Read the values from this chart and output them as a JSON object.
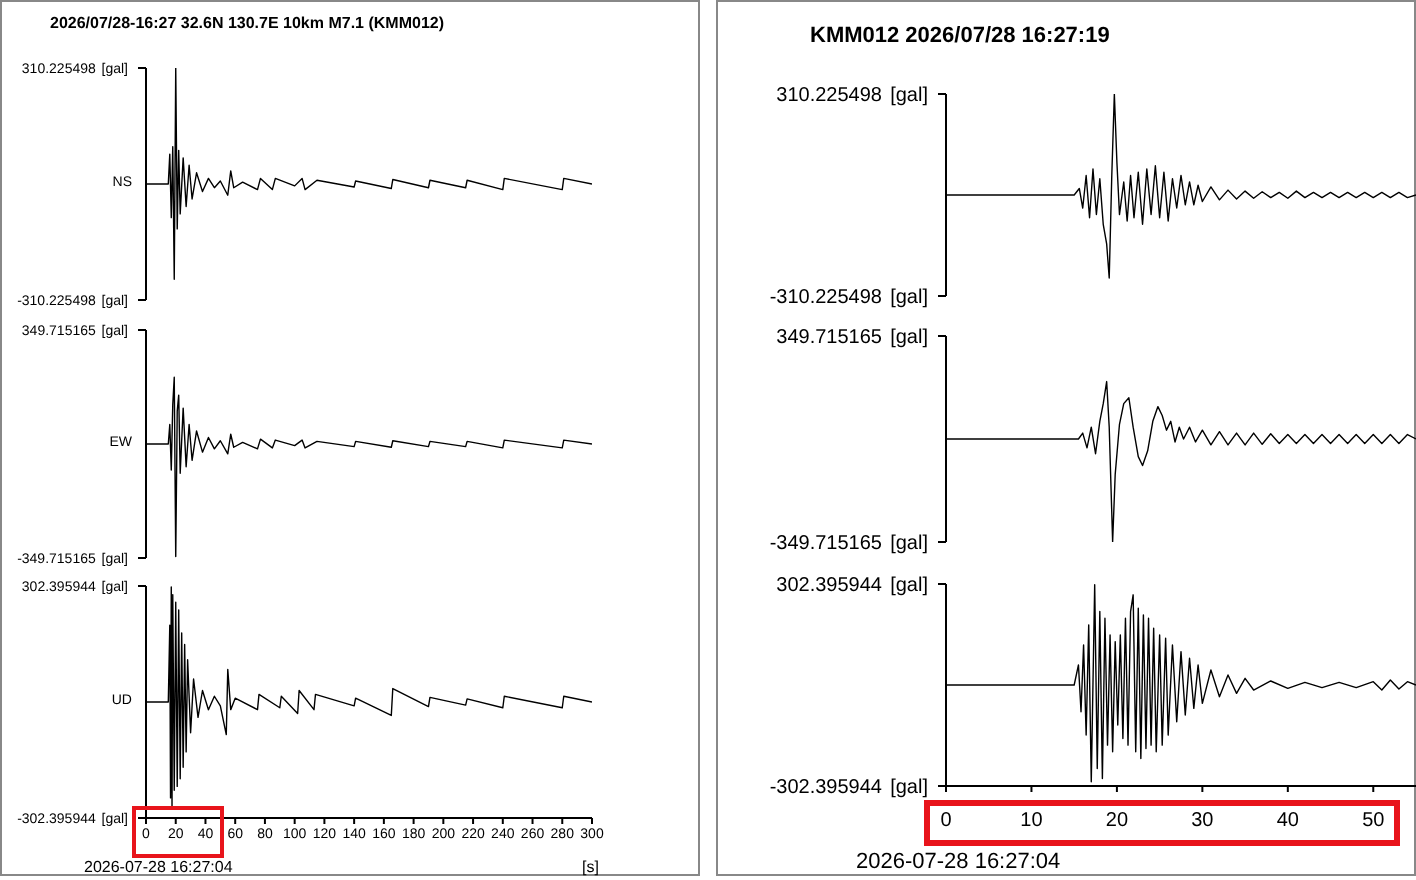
{
  "chart_data": [
    {
      "type": "line",
      "title": "2026/07/28-16:27 32.6N 130.7E 10km M7.1 (KMM012)",
      "xlim": [
        0,
        300
      ],
      "ylim": [
        -310.225498,
        310.225498
      ],
      "ylabel": "[gal]",
      "yticks": [
        -310.225498,
        310.225498
      ],
      "annotations": [
        "NS"
      ],
      "tick_labels": "y",
      "color": "#000000",
      "x": [
        0,
        15,
        16,
        17,
        18,
        19,
        20,
        21,
        22,
        23,
        25,
        27,
        29,
        31,
        34,
        38,
        42,
        46,
        50,
        55,
        57,
        59,
        65,
        75,
        77,
        85,
        87,
        100,
        105,
        107,
        115,
        140,
        141,
        165,
        166,
        190,
        191,
        215,
        216,
        240,
        241,
        280,
        281,
        300
      ],
      "values": [
        0,
        0,
        80,
        -90,
        100,
        -255,
        310,
        -120,
        90,
        -80,
        70,
        -60,
        50,
        -40,
        30,
        -20,
        15,
        -10,
        8,
        -30,
        35,
        -10,
        5,
        -15,
        15,
        -15,
        15,
        -5,
        15,
        -15,
        10,
        -8,
        8,
        -12,
        12,
        -10,
        10,
        -10,
        10,
        -15,
        15,
        -15,
        15,
        0
      ]
    },
    {
      "type": "line",
      "xlim": [
        0,
        300
      ],
      "ylim": [
        -349.715165,
        349.715165
      ],
      "ylabel": "[gal]",
      "yticks": [
        -349.715165,
        349.715165
      ],
      "annotations": [
        "EW"
      ],
      "tick_labels": "y",
      "color": "#000000",
      "x": [
        0,
        15,
        16,
        17,
        18,
        19,
        20,
        21,
        22,
        23,
        25,
        27,
        29,
        31,
        34,
        38,
        42,
        46,
        50,
        55,
        57,
        59,
        65,
        75,
        77,
        85,
        87,
        100,
        105,
        107,
        115,
        140,
        141,
        165,
        166,
        190,
        191,
        215,
        216,
        240,
        241,
        280,
        281,
        300
      ],
      "values": [
        0,
        0,
        60,
        -80,
        120,
        205,
        -345,
        100,
        150,
        -90,
        110,
        -70,
        60,
        -50,
        40,
        -25,
        20,
        -15,
        10,
        -30,
        30,
        -10,
        5,
        -15,
        15,
        -12,
        12,
        -5,
        12,
        -12,
        8,
        -8,
        8,
        -10,
        10,
        -8,
        8,
        -8,
        8,
        -12,
        12,
        -12,
        12,
        0
      ]
    },
    {
      "type": "line",
      "xlim": [
        0,
        300
      ],
      "ylim": [
        -302.395944,
        302.395944
      ],
      "ylabel": "[gal]",
      "yticks": [
        -302.395944,
        302.395944
      ],
      "xticks": [
        0,
        20,
        40,
        60,
        80,
        100,
        120,
        140,
        160,
        180,
        200,
        220,
        240,
        260,
        280,
        300
      ],
      "xlabel": "[s]",
      "annotations": [
        "UD",
        "2026-07-28 16:27:04"
      ],
      "color": "#000000",
      "x": [
        0,
        15,
        16,
        16.5,
        17,
        17.5,
        18,
        19,
        20,
        21,
        22,
        23,
        24,
        25,
        26,
        27,
        28,
        30,
        32,
        35,
        38,
        42,
        46,
        50,
        54,
        55,
        57,
        60,
        75,
        76,
        90,
        91,
        102,
        103,
        113,
        114,
        140,
        141,
        165,
        166,
        190,
        191,
        215,
        216,
        240,
        241,
        280,
        281,
        300
      ],
      "values": [
        0,
        0,
        200,
        -250,
        300,
        -280,
        280,
        -230,
        260,
        -220,
        240,
        -200,
        180,
        -170,
        150,
        -130,
        110,
        -80,
        60,
        -40,
        30,
        -20,
        15,
        -10,
        -85,
        85,
        -20,
        10,
        -20,
        20,
        -15,
        15,
        -30,
        30,
        -20,
        20,
        -10,
        10,
        -35,
        35,
        -12,
        12,
        -8,
        8,
        -15,
        15,
        -15,
        15,
        0
      ]
    },
    {
      "type": "line",
      "title": "KMM012 2026/07/28 16:27:19",
      "xlim": [
        0,
        55
      ],
      "ylim": [
        -310.225498,
        310.225498
      ],
      "ylabel": "[gal]",
      "yticks": [
        -310.225498,
        310.225498
      ],
      "tick_labels": "y",
      "color": "#000000",
      "x": [
        0,
        15,
        15.6,
        16,
        16.4,
        16.8,
        17.2,
        17.6,
        18,
        18.4,
        18.8,
        19.1,
        19.4,
        19.7,
        20,
        20.3,
        20.8,
        21.2,
        21.6,
        22,
        22.5,
        23,
        23.5,
        24,
        24.5,
        25,
        25.5,
        26,
        26.5,
        27,
        27.5,
        28,
        28.5,
        29,
        29.5,
        30,
        31,
        32,
        33,
        34,
        35,
        36,
        37,
        38,
        39,
        40,
        41,
        42,
        43,
        44,
        45,
        46,
        47,
        48,
        49,
        50,
        51,
        52,
        53,
        54,
        55
      ],
      "values": [
        0,
        0,
        20,
        -40,
        60,
        -70,
        80,
        -60,
        50,
        -90,
        -150,
        -255,
        60,
        310,
        100,
        -60,
        40,
        -80,
        60,
        -70,
        70,
        -90,
        80,
        -60,
        90,
        -70,
        70,
        -80,
        50,
        -40,
        60,
        -30,
        40,
        -30,
        30,
        -20,
        25,
        -15,
        15,
        -12,
        12,
        -10,
        10,
        -8,
        8,
        -10,
        12,
        -8,
        8,
        -8,
        8,
        -8,
        8,
        -8,
        8,
        -8,
        8,
        -8,
        8,
        -8,
        0
      ]
    },
    {
      "type": "line",
      "xlim": [
        0,
        55
      ],
      "ylim": [
        -349.715165,
        349.715165
      ],
      "ylabel": "[gal]",
      "yticks": [
        -349.715165,
        349.715165
      ],
      "tick_labels": "y",
      "color": "#000000",
      "x": [
        0,
        15.5,
        16,
        16.5,
        17,
        17.5,
        18,
        18.4,
        18.8,
        19.1,
        19.5,
        19.8,
        20.3,
        20.8,
        21.4,
        21.9,
        22.5,
        23,
        23.6,
        24.2,
        24.8,
        25.3,
        25.8,
        26.3,
        26.8,
        27.3,
        27.8,
        28.5,
        29.2,
        30,
        31,
        32,
        33,
        34,
        35,
        36,
        37,
        38,
        39,
        40,
        41,
        42,
        43,
        44,
        45,
        46,
        47,
        48,
        49,
        50,
        51,
        52,
        53,
        54,
        55
      ],
      "values": [
        0,
        0,
        20,
        -30,
        40,
        -50,
        60,
        120,
        195,
        40,
        -349,
        -120,
        50,
        120,
        140,
        40,
        -60,
        -90,
        -40,
        60,
        110,
        80,
        30,
        60,
        -10,
        40,
        0,
        40,
        -10,
        30,
        -20,
        25,
        -20,
        20,
        -20,
        20,
        -18,
        18,
        -15,
        15,
        -15,
        15,
        -15,
        15,
        -15,
        15,
        -15,
        15,
        -15,
        15,
        -15,
        15,
        -15,
        15,
        0
      ]
    },
    {
      "type": "line",
      "xlim": [
        0,
        55
      ],
      "ylim": [
        -302.395944,
        302.395944
      ],
      "ylabel": "[gal]",
      "yticks": [
        -302.395944,
        302.395944
      ],
      "xticks": [
        0,
        10,
        20,
        30,
        40,
        50
      ],
      "annotations": [
        "2026-07-28 16:27:04"
      ],
      "color": "#000000",
      "x": [
        0,
        15,
        15.5,
        15.8,
        16.1,
        16.4,
        16.7,
        17,
        17.4,
        17.7,
        18,
        18.3,
        18.6,
        18.9,
        19.2,
        19.5,
        19.8,
        20.1,
        20.4,
        20.7,
        21,
        21.3,
        21.6,
        21.9,
        22.2,
        22.5,
        22.8,
        23.1,
        23.4,
        23.7,
        24,
        24.3,
        24.6,
        25,
        25.3,
        25.7,
        26,
        26.5,
        27,
        27.5,
        28,
        28.5,
        29,
        29.5,
        30,
        31,
        32,
        33,
        34,
        35,
        36,
        38,
        40,
        42,
        44,
        46,
        48,
        50,
        51,
        52,
        53,
        54,
        55
      ],
      "values": [
        0,
        0,
        60,
        -80,
        120,
        -150,
        180,
        -290,
        300,
        -250,
        220,
        -280,
        200,
        -180,
        150,
        -200,
        130,
        -120,
        150,
        -160,
        200,
        -180,
        220,
        270,
        -200,
        230,
        -220,
        210,
        -190,
        200,
        -180,
        170,
        -200,
        150,
        -180,
        140,
        -150,
        120,
        -110,
        100,
        -90,
        80,
        -70,
        60,
        -55,
        45,
        -35,
        30,
        -25,
        20,
        -15,
        12,
        -10,
        8,
        -8,
        8,
        -8,
        10,
        -15,
        15,
        -12,
        10,
        0
      ]
    }
  ]
}
